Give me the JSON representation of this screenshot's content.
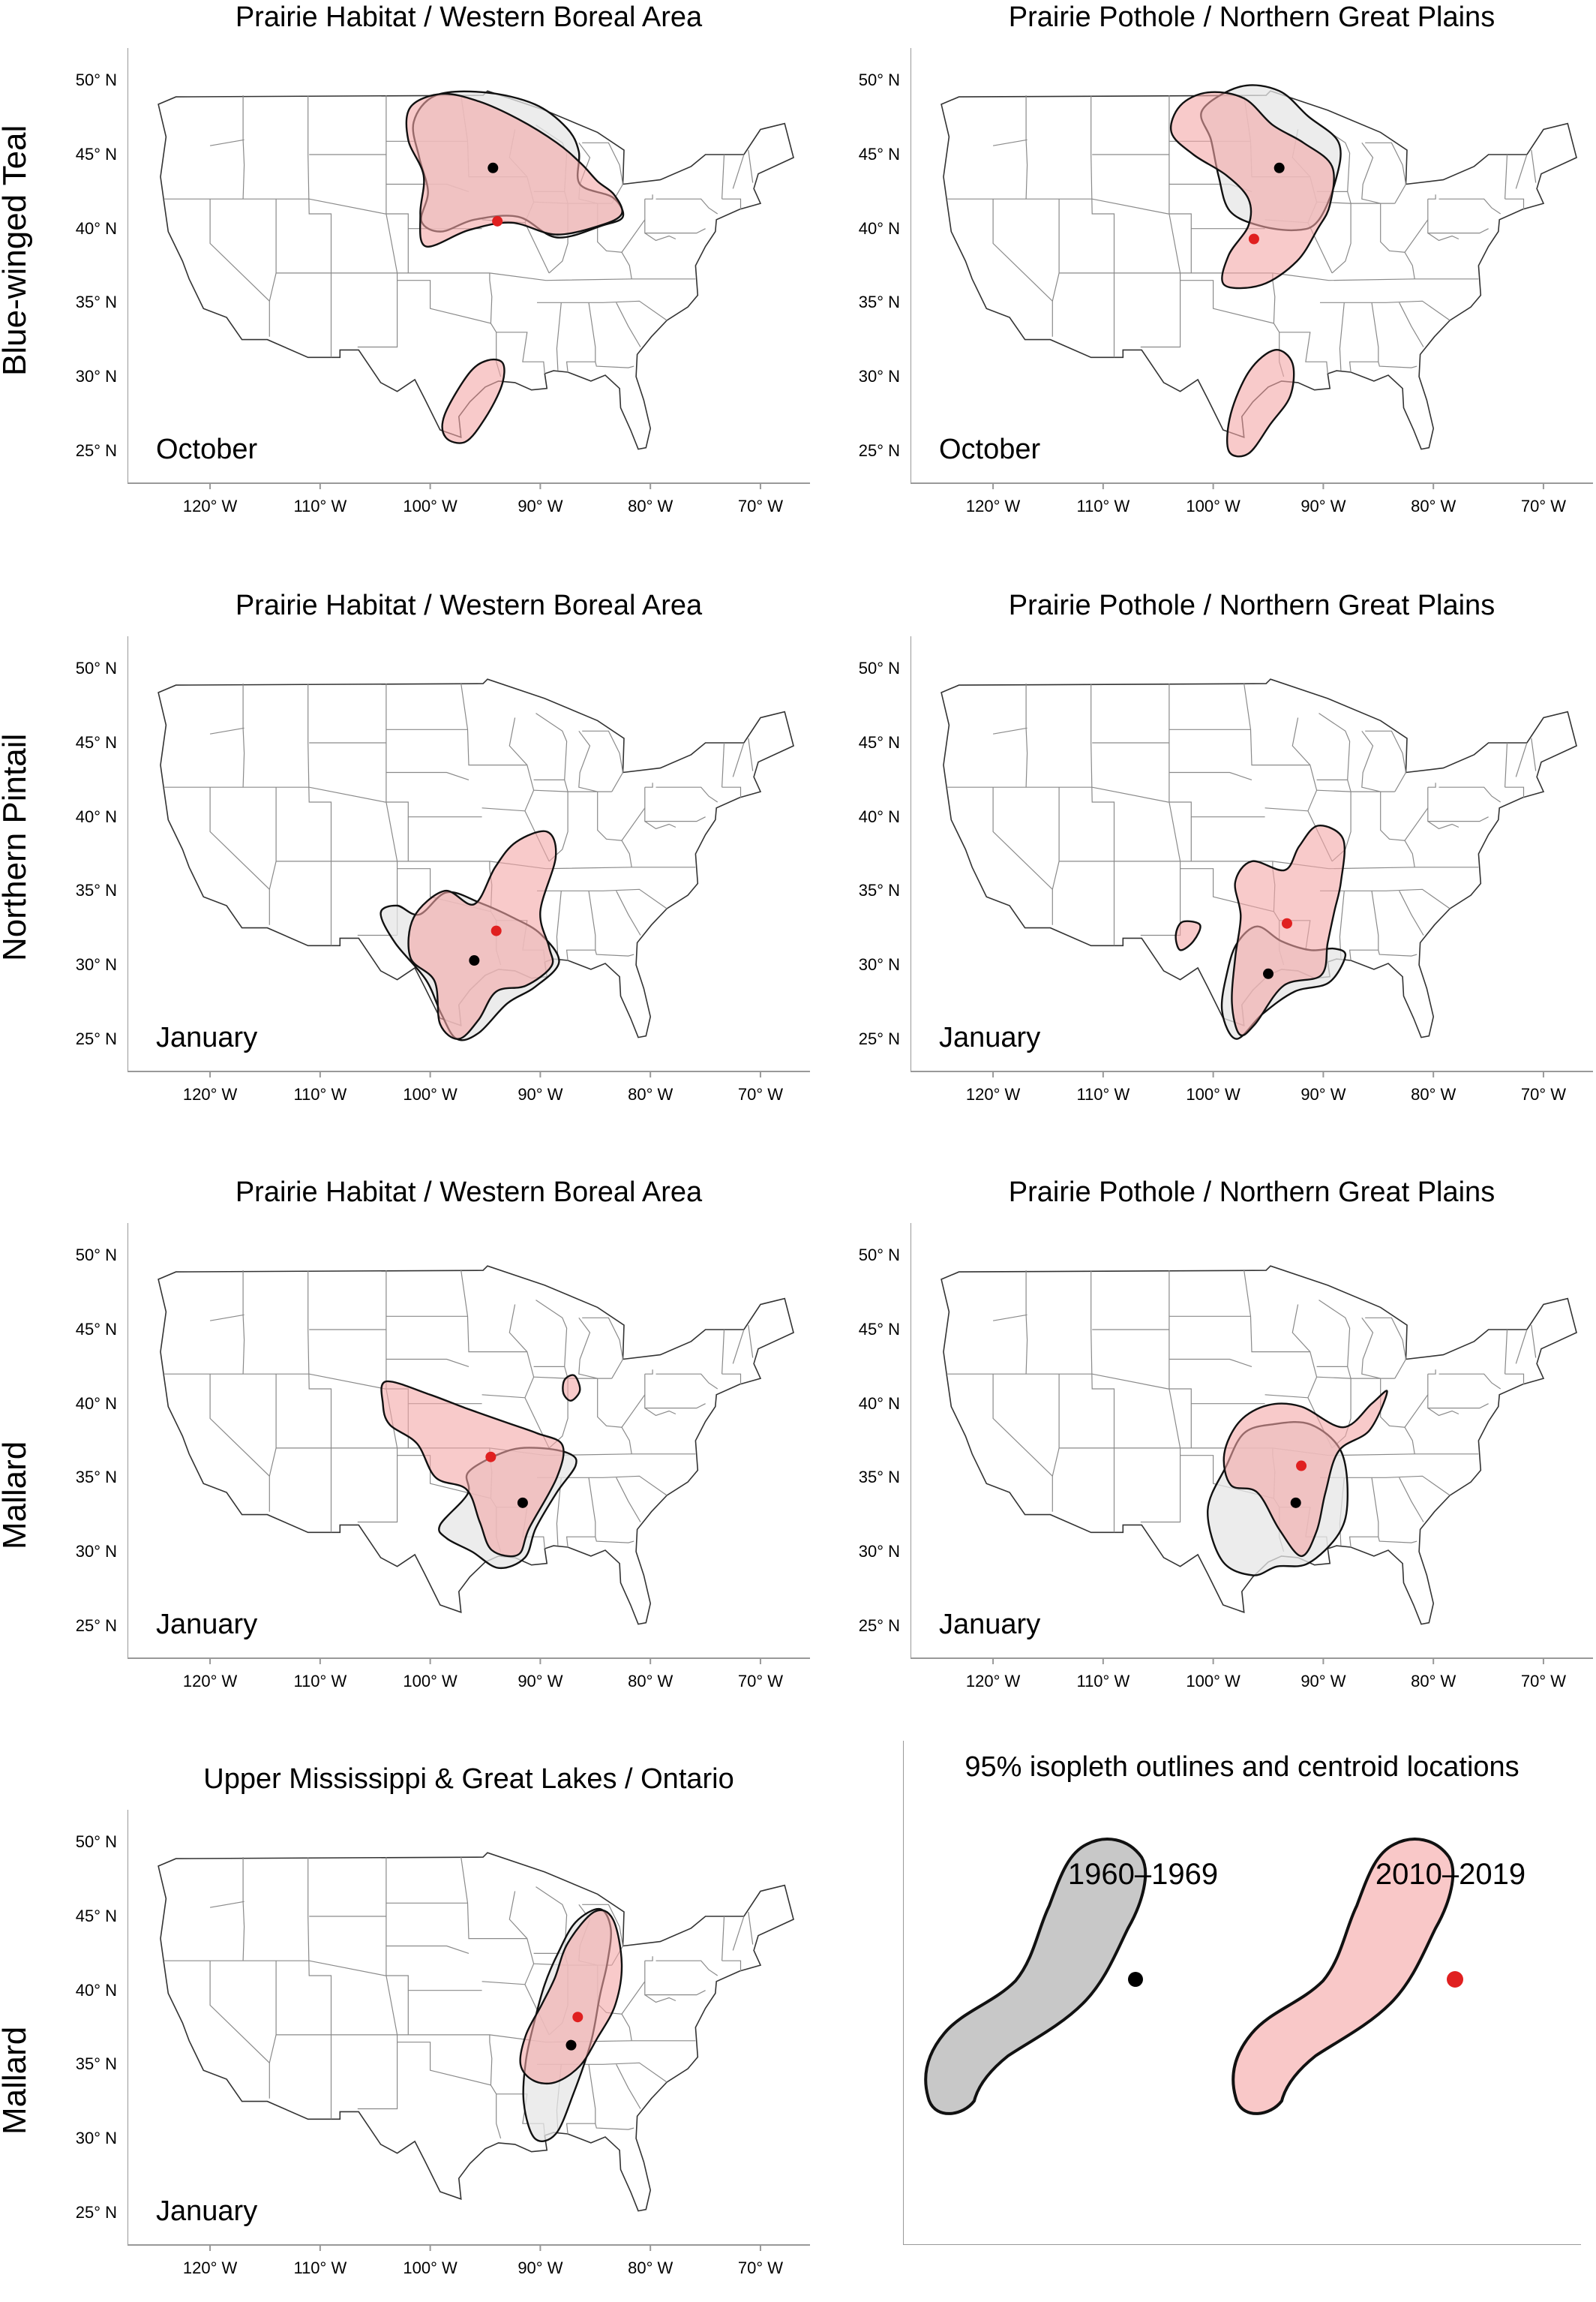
{
  "row_labels": [
    "Blue-winged Teal",
    "Northern Pintail",
    "Mallard",
    "Mallard"
  ],
  "y_ticks": [
    "50° N",
    "45° N",
    "40° N",
    "35° N",
    "30° N",
    "25° N"
  ],
  "x_ticks": [
    "120° W",
    "110° W",
    "100° W",
    "90° W",
    "80° W",
    "70° W"
  ],
  "panels": [
    {
      "id": "p1",
      "title": "Prairie Habitat / Western Boreal Area",
      "month": "October",
      "centroid_1960": [
        -94.3,
        44.1
      ],
      "centroid_2010": [
        -93.9,
        40.5
      ]
    },
    {
      "id": "p2",
      "title": "Prairie Pothole / Northern Great Plains",
      "month": "October",
      "centroid_1960": [
        -94.0,
        44.1
      ],
      "centroid_2010": [
        -96.3,
        39.3
      ]
    },
    {
      "id": "p3",
      "title": "Prairie Habitat / Western Boreal Area",
      "month": "January",
      "centroid_1960": [
        -96.0,
        30.3
      ],
      "centroid_2010": [
        -94.0,
        32.3
      ]
    },
    {
      "id": "p4",
      "title": "Prairie Pothole / Northern Great Plains",
      "month": "January",
      "centroid_1960": [
        -95.0,
        29.4
      ],
      "centroid_2010": [
        -93.3,
        32.8
      ]
    },
    {
      "id": "p5",
      "title": "Prairie Habitat / Western Boreal Area",
      "month": "January",
      "centroid_1960": [
        -91.6,
        33.3
      ],
      "centroid_2010": [
        -94.5,
        36.4
      ]
    },
    {
      "id": "p6",
      "title": "Prairie Pothole / Northern Great Plains",
      "month": "January",
      "centroid_1960": [
        -92.5,
        33.3
      ],
      "centroid_2010": [
        -92.0,
        35.8
      ]
    },
    {
      "id": "p7",
      "title": "Upper Mississippi & Great Lakes / Ontario",
      "month": "January",
      "centroid_1960": [
        -87.2,
        36.3
      ],
      "centroid_2010": [
        -86.6,
        38.2
      ]
    }
  ],
  "legend": {
    "title": "95% isopleth outlines and centroid locations",
    "period_1960": "1960–1969",
    "period_2010": "2010–2019",
    "color_1960": "#c8c8c8",
    "color_2010": "#f9c8c8",
    "centroid_1960_color": "#000000",
    "centroid_2010_color": "#e02020"
  },
  "colors": {
    "fill_1960": "#e6e6e6",
    "fill_2010": "#f4a6a6",
    "outline": "#111111",
    "map_lines": "#8a8a8a"
  }
}
